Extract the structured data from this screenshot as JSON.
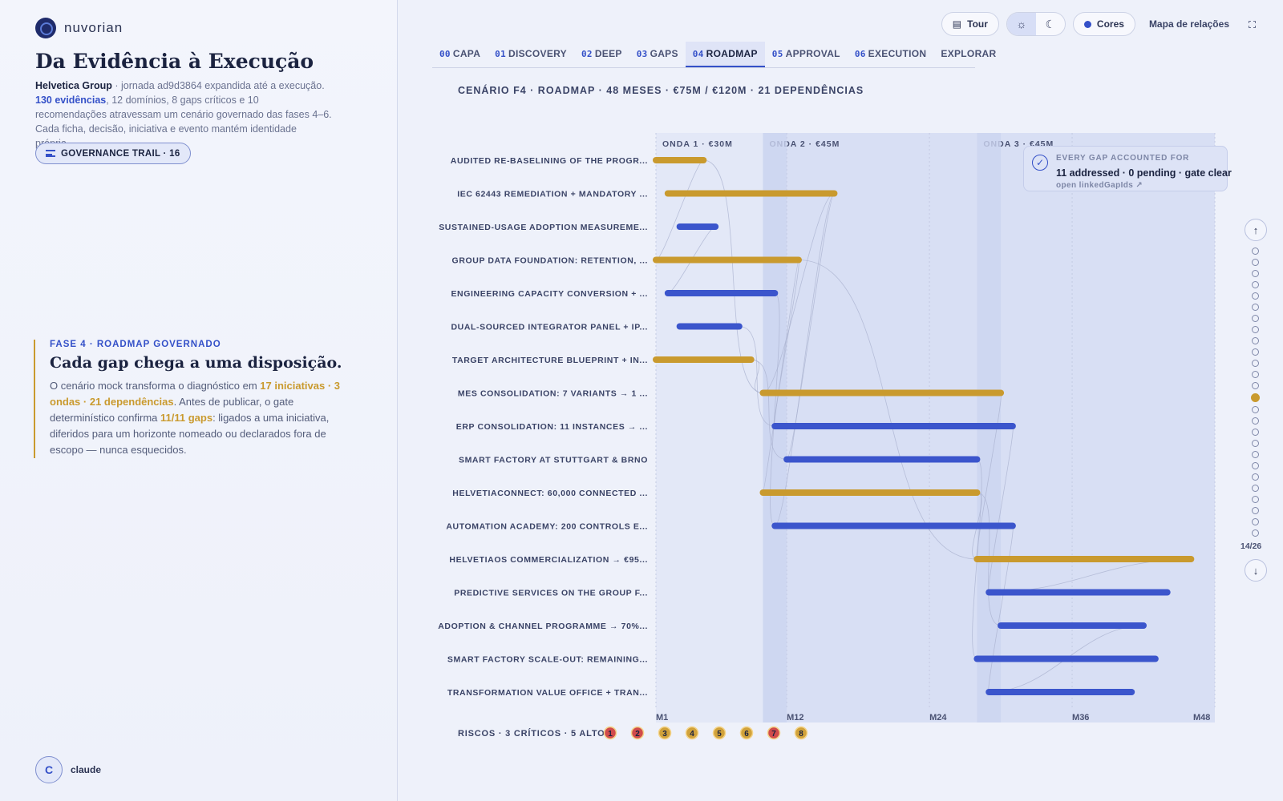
{
  "brand": {
    "name": "nuvorian"
  },
  "left": {
    "title": "Da Evidência à Execução",
    "intro_company": "Helvetica Group",
    "intro_rest1": " · jornada ad9d3864 expandida até a execução.",
    "intro_evidence": "130 evidências",
    "intro_rest2": ", 12 domínios, 8 gaps críticos e 10 recomendações atravessam um cenário governado das fases 4–6. Cada ficha, decisão, iniciativa e evento mantém identidade própria.",
    "governance_button": "GOVERNANCE TRAIL · 16",
    "phase_kicker": "FASE 4 · ROADMAP GOVERNADO",
    "phase_title": "Cada gap chega a uma disposição.",
    "phase_body1": "O cenário mock transforma o diagnóstico em ",
    "phase_highlight1": "17 iniciativas · 3 ondas · 21 dependências",
    "phase_body2": ". Antes de publicar, o gate determinístico confirma ",
    "phase_highlight2": "11/11 gaps",
    "phase_body3": ": ligados a uma iniciativa, diferidos para um horizonte nomeado ou declarados fora de escopo — nunca esquecidos.",
    "user_initial": "C",
    "user_name": "claude"
  },
  "toolbar": {
    "tour": "Tour",
    "light_icon": "sun-icon",
    "dark_icon": "moon-icon",
    "colors": "Cores",
    "relations": "Mapa de relações",
    "fullscreen_icon": "fullscreen-icon"
  },
  "tabs": [
    {
      "num": "00",
      "label": "CAPA"
    },
    {
      "num": "01",
      "label": "DISCOVERY"
    },
    {
      "num": "02",
      "label": "DEEP"
    },
    {
      "num": "03",
      "label": "GAPS"
    },
    {
      "num": "04",
      "label": "ROADMAP",
      "active": true
    },
    {
      "num": "05",
      "label": "APPROVAL"
    },
    {
      "num": "06",
      "label": "EXECUTION"
    },
    {
      "num": "",
      "label": "EXPLORAR"
    }
  ],
  "scenario": "CENÁRIO F4 · ROADMAP · 48 MESES · €75M / €120M · 21 DEPENDÊNCIAS",
  "gate": {
    "kicker": "EVERY GAP ACCOUNTED FOR",
    "main": "11 addressed · 0 pending · gate clear",
    "link": "open linkedGapIds ↗"
  },
  "chart_data": {
    "type": "gantt",
    "x_unit": "month",
    "xlim": [
      1,
      48
    ],
    "x_ticks": [
      {
        "m": 1,
        "label": "M1"
      },
      {
        "m": 12,
        "label": "M12"
      },
      {
        "m": 24,
        "label": "M24"
      },
      {
        "m": 36,
        "label": "M36"
      },
      {
        "m": 48,
        "label": "M48"
      }
    ],
    "waves": [
      {
        "label": "ONDA 1 · €30M",
        "start": 1,
        "end": 10
      },
      {
        "label": "ONDA 2 · €45M",
        "start": 10,
        "end": 28
      },
      {
        "label": "ONDA 3 · €45M",
        "start": 28,
        "end": 48
      }
    ],
    "colors": {
      "gold": "#c99a2e",
      "blue": "#3b55cc"
    },
    "tasks": [
      {
        "label": "AUDITED RE-BASELINING OF THE PROGR...",
        "start": 1,
        "end": 5,
        "color": "gold"
      },
      {
        "label": "IEC 62443 REMEDIATION + MANDATORY ...",
        "start": 2,
        "end": 16,
        "color": "gold"
      },
      {
        "label": "SUSTAINED-USAGE ADOPTION MEASUREME...",
        "start": 3,
        "end": 6,
        "color": "blue"
      },
      {
        "label": "GROUP DATA FOUNDATION: RETENTION, ...",
        "start": 1,
        "end": 13,
        "color": "gold"
      },
      {
        "label": "ENGINEERING CAPACITY CONVERSION + ...",
        "start": 2,
        "end": 11,
        "color": "blue"
      },
      {
        "label": "DUAL-SOURCED INTEGRATOR PANEL + IP...",
        "start": 3,
        "end": 8,
        "color": "blue"
      },
      {
        "label": "TARGET ARCHITECTURE BLUEPRINT + IN...",
        "start": 1,
        "end": 9,
        "color": "gold"
      },
      {
        "label": "MES CONSOLIDATION: 7 VARIANTS → 1 ...",
        "start": 10,
        "end": 30,
        "color": "gold"
      },
      {
        "label": "ERP CONSOLIDATION: 11 INSTANCES → ...",
        "start": 11,
        "end": 31,
        "color": "blue"
      },
      {
        "label": "SMART FACTORY AT STUTTGART & BRNO",
        "start": 12,
        "end": 28,
        "color": "blue"
      },
      {
        "label": "HELVETIACONNECT: 60,000 CONNECTED ...",
        "start": 10,
        "end": 28,
        "color": "gold"
      },
      {
        "label": "AUTOMATION ACADEMY: 200 CONTROLS E...",
        "start": 11,
        "end": 31,
        "color": "blue"
      },
      {
        "label": "HELVETIAOS COMMERCIALIZATION → €95...",
        "start": 28,
        "end": 46,
        "color": "gold"
      },
      {
        "label": "PREDICTIVE SERVICES ON THE GROUP F...",
        "start": 29,
        "end": 44,
        "color": "blue"
      },
      {
        "label": "ADOPTION & CHANNEL PROGRAMME → 70%...",
        "start": 30,
        "end": 42,
        "color": "blue"
      },
      {
        "label": "SMART FACTORY SCALE-OUT: REMAINING...",
        "start": 28,
        "end": 43,
        "color": "blue"
      },
      {
        "label": "TRANSFORMATION VALUE OFFICE + TRAN...",
        "start": 29,
        "end": 41,
        "color": "blue"
      }
    ],
    "dependencies": [
      [
        0,
        7
      ],
      [
        0,
        3
      ],
      [
        1,
        7
      ],
      [
        1,
        9
      ],
      [
        1,
        11
      ],
      [
        2,
        4
      ],
      [
        3,
        8
      ],
      [
        3,
        10
      ],
      [
        3,
        12
      ],
      [
        4,
        11
      ],
      [
        5,
        8
      ],
      [
        6,
        7
      ],
      [
        6,
        9
      ],
      [
        7,
        12
      ],
      [
        8,
        13
      ],
      [
        9,
        15
      ],
      [
        10,
        12
      ],
      [
        10,
        14
      ],
      [
        11,
        16
      ],
      [
        12,
        13
      ],
      [
        14,
        16
      ]
    ],
    "risks_label": "RISCOS · 3 CRÍTICOS · 5 ALTOS",
    "risks": [
      {
        "n": "1",
        "level": "critical"
      },
      {
        "n": "2",
        "level": "critical"
      },
      {
        "n": "3",
        "level": "high"
      },
      {
        "n": "4",
        "level": "high"
      },
      {
        "n": "5",
        "level": "high"
      },
      {
        "n": "6",
        "level": "high"
      },
      {
        "n": "7",
        "level": "critical"
      },
      {
        "n": "8",
        "level": "high"
      }
    ]
  },
  "slides": {
    "total": 26,
    "current": 14,
    "counter": "14/26",
    "up_icon": "arrow-up-icon",
    "down_icon": "arrow-down-icon"
  }
}
